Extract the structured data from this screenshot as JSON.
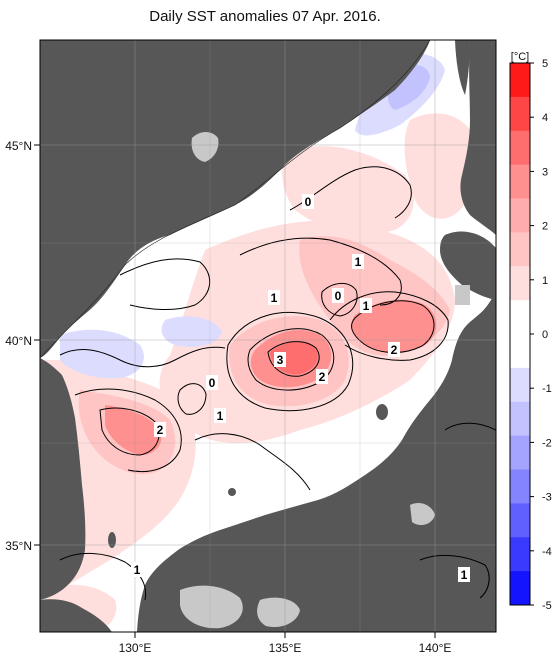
{
  "title": "Daily SST anomalies 07 Apr. 2016.",
  "colorbar": {
    "unit": "[°C]",
    "ticks": [
      "5",
      "4",
      "3",
      "2",
      "1",
      "0",
      "-1",
      "-2",
      "-3",
      "-4",
      "-5"
    ],
    "colors": [
      "#ff1a1a",
      "#ff4646",
      "#ff6e6e",
      "#ff9090",
      "#ffacac",
      "#ffc4c4",
      "#ffdede",
      "#ffffff",
      "#ffffff",
      "#dcdcff",
      "#c2c2ff",
      "#a4a4ff",
      "#8484ff",
      "#6060ff",
      "#3a3aff",
      "#1414ff"
    ]
  },
  "axes": {
    "lat_labels": [
      "45°N",
      "40°N",
      "35°N"
    ],
    "lon_labels": [
      "130°E",
      "135°E",
      "140°E"
    ]
  },
  "contour_labels": [
    "0",
    "1",
    "0",
    "1",
    "1",
    "3",
    "2",
    "2",
    "0",
    "1",
    "2",
    "1",
    "1"
  ],
  "colors": {
    "land": "#575757",
    "ice_light": "#c8c8c8",
    "grid": "#9a9a9a"
  }
}
